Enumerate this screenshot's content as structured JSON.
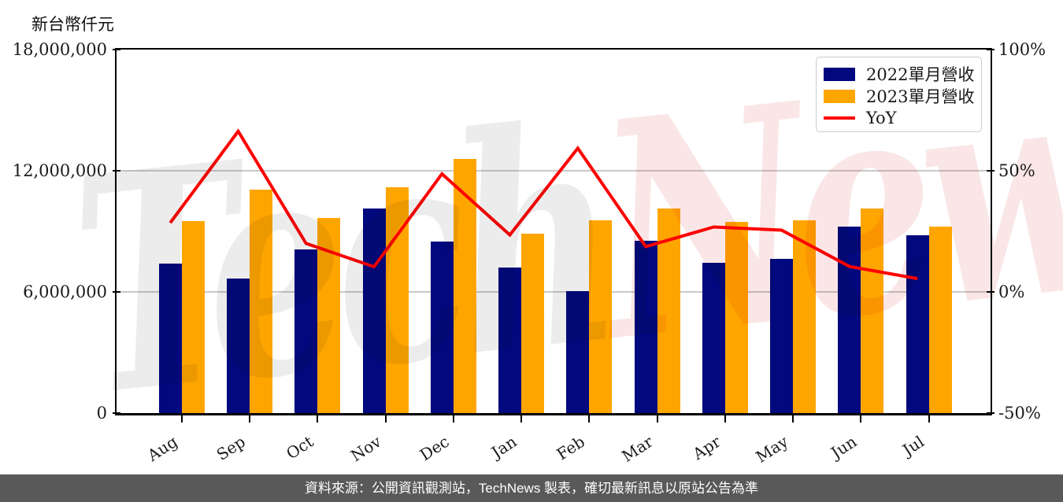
{
  "watermark": {
    "text_left": "Tech",
    "text_right": "News"
  },
  "footer": {
    "text": "資料來源：公開資訊觀測站，TechNews 製表，確切最新訊息以原站公告為準"
  },
  "colors": {
    "bar_2022": "#02097e",
    "bar_2023": "#ffa500",
    "yoy_line": "#ff0000",
    "gridline": "#c9c9c9",
    "axis": "#000000",
    "footer_bg": "#595959",
    "watermark_gray": "#ececec",
    "watermark_pink": "#fae6e6"
  },
  "chart_data": {
    "type": "bar+line",
    "categories": [
      "Aug",
      "Sep",
      "Oct",
      "Nov",
      "Dec",
      "Jan",
      "Feb",
      "Mar",
      "Apr",
      "May",
      "Jun",
      "Jul"
    ],
    "series": [
      {
        "name": "2022單月營收",
        "type": "bar",
        "axis": "left",
        "color": "#02097e",
        "values": [
          7400000,
          6650000,
          8100000,
          10150000,
          8500000,
          7200000,
          6050000,
          8550000,
          7450000,
          7650000,
          9250000,
          8800000
        ]
      },
      {
        "name": "2023單月營收",
        "type": "bar",
        "axis": "left",
        "color": "#ffa500",
        "values": [
          9500000,
          11050000,
          9650000,
          11200000,
          12600000,
          8900000,
          9550000,
          10150000,
          9450000,
          9550000,
          10150000,
          9250000
        ]
      },
      {
        "name": "YoY",
        "type": "line",
        "axis": "right",
        "color": "#ff0000",
        "values": [
          28.5,
          66.3,
          20.0,
          10.4,
          48.7,
          23.5,
          59.3,
          18.7,
          26.8,
          25.5,
          10.5,
          5.5
        ]
      }
    ],
    "left_axis": {
      "title": "新台幣仟元",
      "min": 0,
      "max": 18000000,
      "tick_values": [
        0,
        6000000,
        12000000,
        18000000
      ],
      "tick_labels": [
        "0",
        "6,000,000",
        "12,000,000",
        "18,000,000"
      ],
      "grid_values": [
        6000000,
        12000000
      ]
    },
    "right_axis": {
      "min": -50,
      "max": 100,
      "tick_values": [
        -50,
        0,
        50,
        100
      ],
      "tick_labels": [
        "-50%",
        "0%",
        "50%",
        "100%"
      ]
    },
    "legend_position": "top-right",
    "x_tick_rotation": -33,
    "grid": "horizontal"
  }
}
